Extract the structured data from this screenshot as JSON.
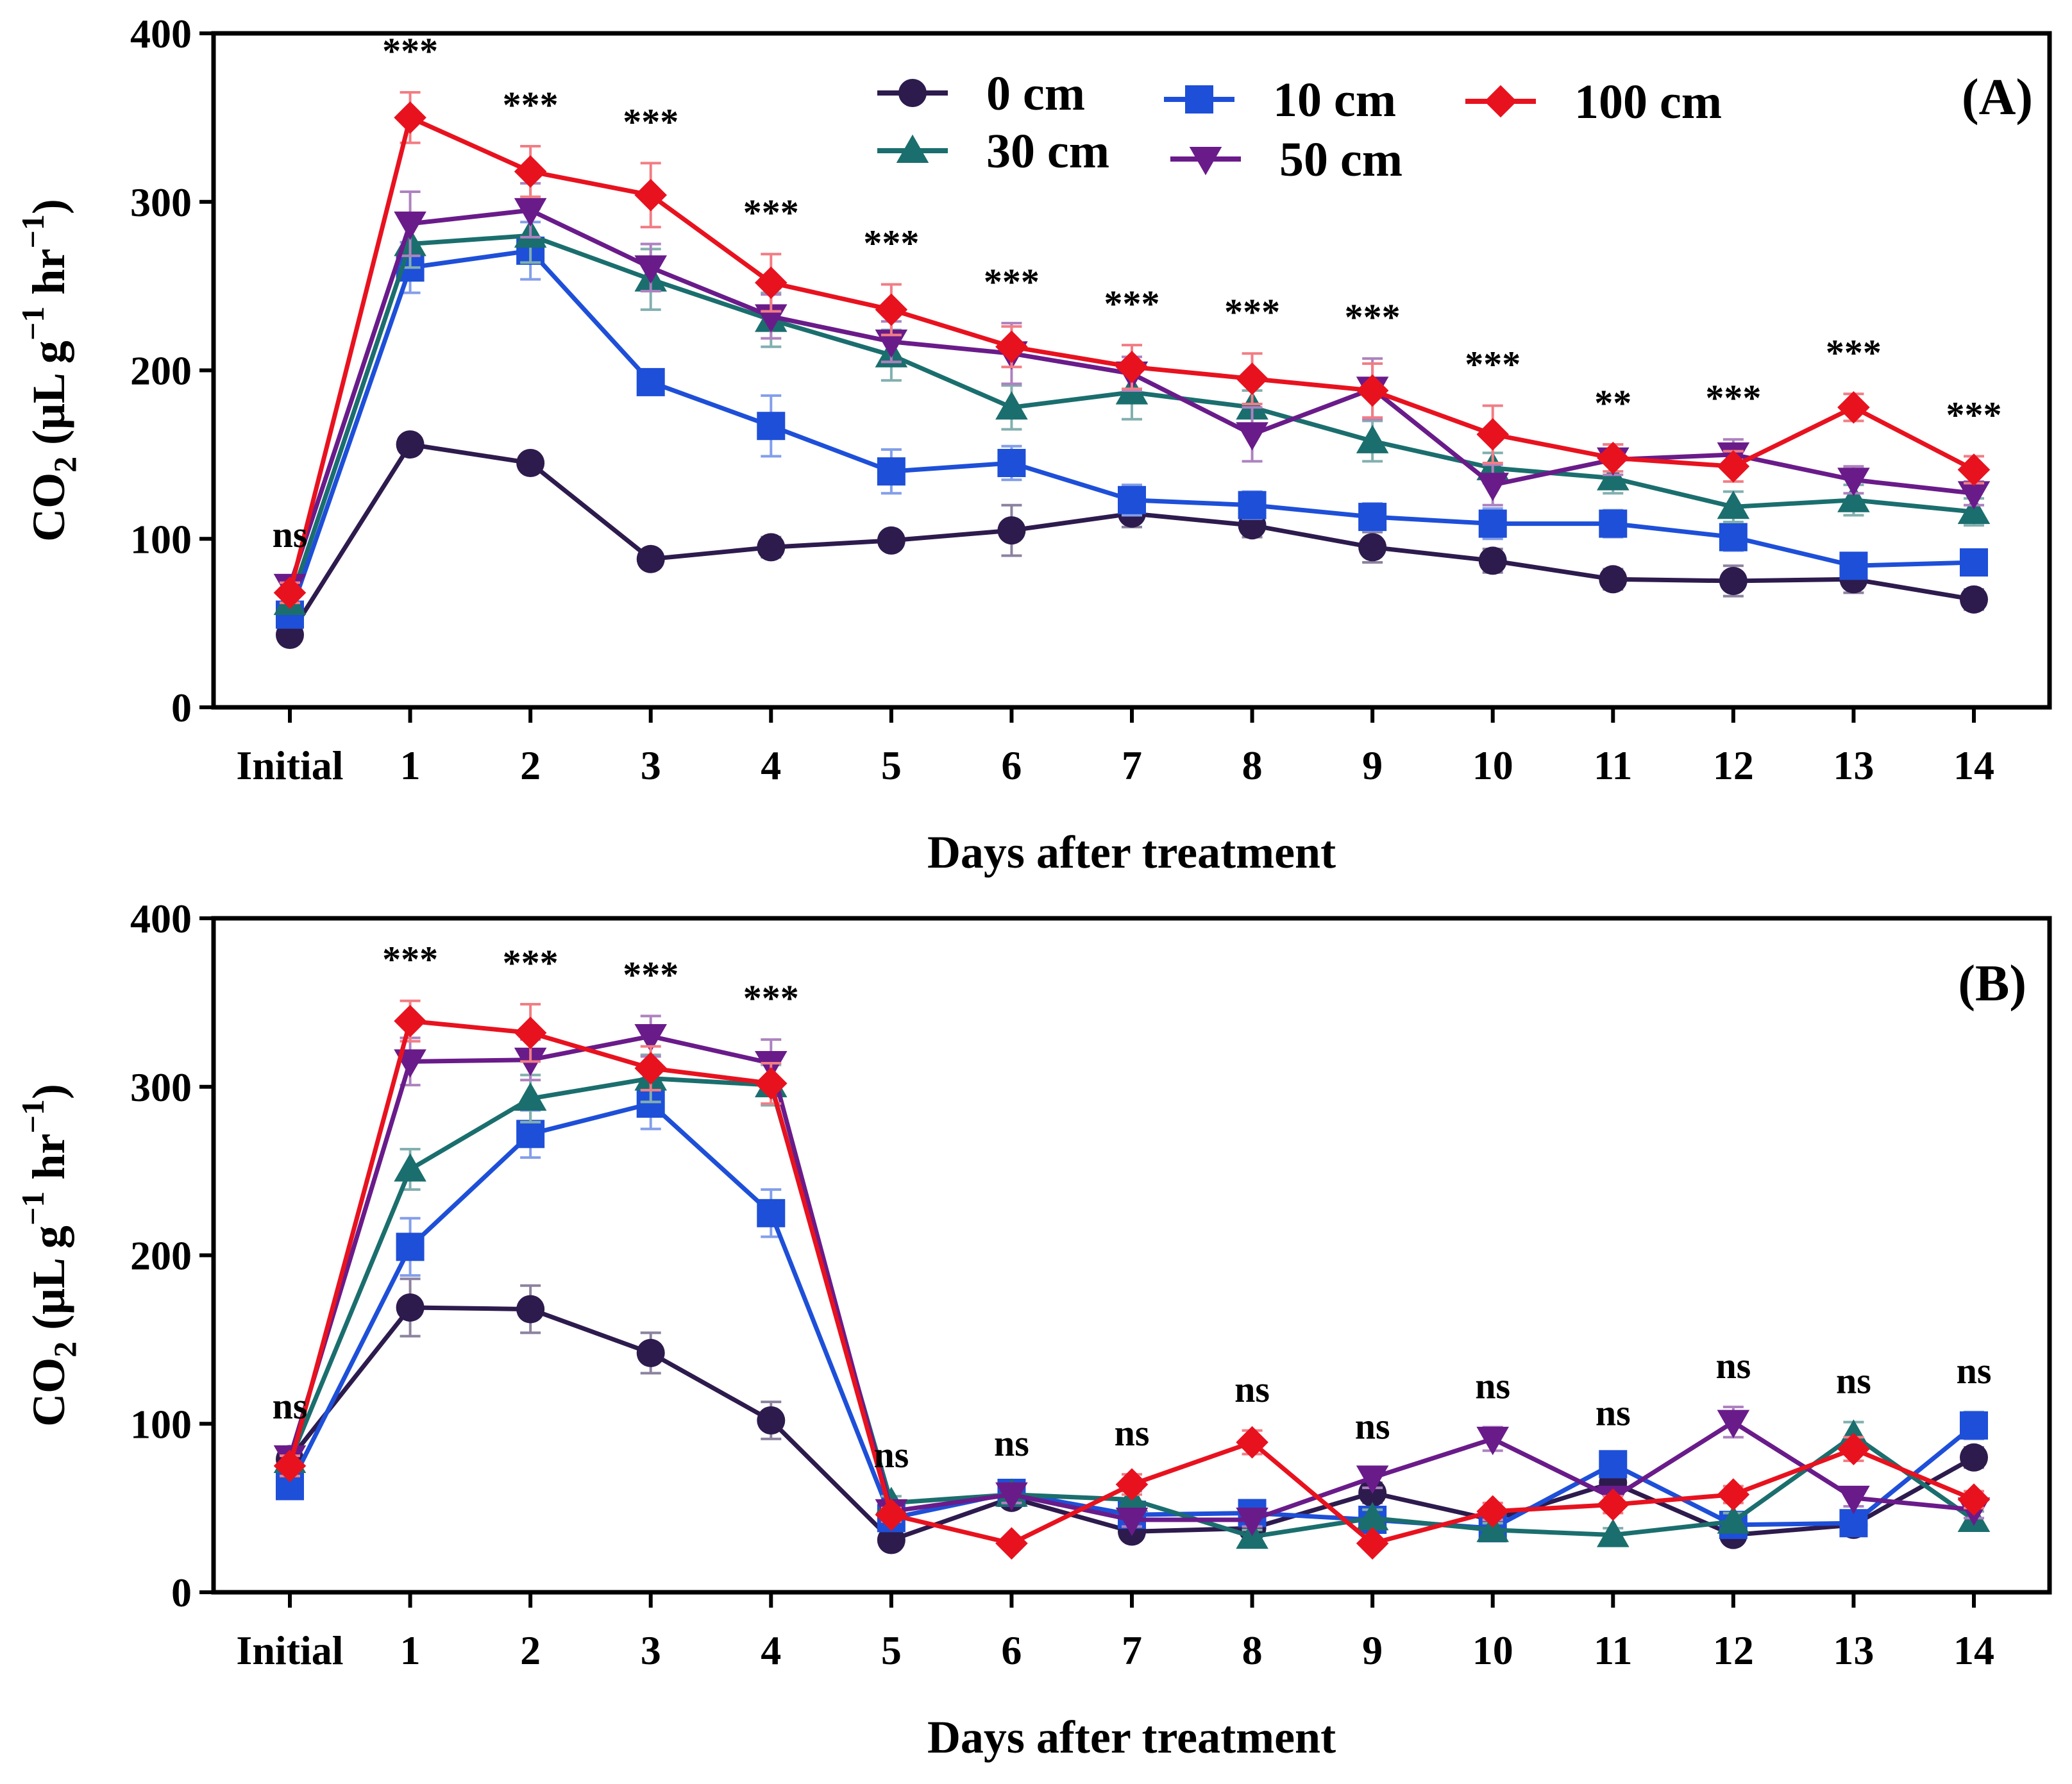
{
  "chart_data": [
    {
      "type": "line",
      "panel_label": "(A)",
      "title": "",
      "xlabel": "Days after treatment",
      "ylabel": "CO2 (μL g−1 hr−1)",
      "ylabel_parts": {
        "main": "CO",
        "sub": "2",
        "unit_open": " (μL g",
        "sup1": "−1",
        "unit_mid": " hr",
        "sup2": "−1",
        "unit_close": ")"
      },
      "ylim": [
        0,
        400
      ],
      "yticks": [
        0,
        100,
        200,
        300,
        400
      ],
      "ytick_labels": [
        "0",
        "100",
        "200",
        "300",
        "400"
      ],
      "categories": [
        "Initial",
        "1",
        "2",
        "3",
        "4",
        "5",
        "6",
        "7",
        "8",
        "9",
        "10",
        "11",
        "12",
        "13",
        "14"
      ],
      "significance": [
        "ns",
        "***",
        "***",
        "***",
        "***",
        "***",
        "***",
        "***",
        "***",
        "***",
        "***",
        "**",
        "***",
        "***",
        "***"
      ],
      "legend": true,
      "series": [
        {
          "name": "0 cm",
          "color": "#2d1b4e",
          "marker": "circle",
          "values": [
            43,
            156,
            145,
            88,
            95,
            99,
            105,
            115,
            108,
            95,
            87,
            76,
            75,
            76,
            64
          ],
          "errors": [
            4,
            5,
            4,
            5,
            6,
            5,
            15,
            8,
            7,
            9,
            7,
            6,
            9,
            8,
            6
          ]
        },
        {
          "name": "10 cm",
          "color": "#1e4fd8",
          "marker": "square",
          "values": [
            55,
            261,
            271,
            193,
            167,
            140,
            145,
            123,
            120,
            113,
            109,
            109,
            101,
            84,
            86
          ],
          "errors": [
            5,
            15,
            17,
            6,
            18,
            13,
            10,
            9,
            8,
            8,
            9,
            8,
            8,
            6,
            6
          ]
        },
        {
          "name": "30 cm",
          "color": "#1b6e6e",
          "marker": "triangle-up",
          "values": [
            62,
            275,
            280,
            254,
            230,
            209,
            178,
            187,
            178,
            158,
            142,
            136,
            119,
            123,
            116
          ],
          "errors": [
            6,
            14,
            16,
            18,
            16,
            15,
            13,
            16,
            10,
            12,
            9,
            9,
            9,
            9,
            8
          ]
        },
        {
          "name": "50 cm",
          "color": "#6a1b8a",
          "marker": "triangle-down",
          "values": [
            72,
            287,
            295,
            261,
            232,
            217,
            210,
            198,
            162,
            189,
            132,
            147,
            150,
            135,
            127
          ],
          "errors": [
            6,
            19,
            16,
            14,
            13,
            12,
            18,
            10,
            16,
            18,
            12,
            9,
            9,
            8,
            7
          ]
        },
        {
          "name": "100 cm",
          "color": "#e8121f",
          "marker": "diamond",
          "values": [
            68,
            350,
            318,
            304,
            252,
            236,
            214,
            202,
            195,
            188,
            162,
            148,
            143,
            178,
            141
          ],
          "errors": [
            6,
            15,
            15,
            19,
            17,
            15,
            12,
            13,
            15,
            16,
            17,
            8,
            9,
            8,
            8
          ]
        }
      ]
    },
    {
      "type": "line",
      "panel_label": "(B)",
      "title": "",
      "xlabel": "Days after treatment",
      "ylabel": "CO2 (μL g−1 hr−1)",
      "ylabel_parts": {
        "main": "CO",
        "sub": "2",
        "unit_open": " (μL g",
        "sup1": "−1",
        "unit_mid": " hr",
        "sup2": "−1",
        "unit_close": ")"
      },
      "ylim": [
        0,
        400
      ],
      "yticks": [
        0,
        100,
        200,
        300,
        400
      ],
      "ytick_labels": [
        "0",
        "100",
        "200",
        "300",
        "400"
      ],
      "categories": [
        "Initial",
        "1",
        "2",
        "3",
        "4",
        "5",
        "6",
        "7",
        "8",
        "9",
        "10",
        "11",
        "12",
        "13",
        "14"
      ],
      "significance": [
        "ns",
        "***",
        "***",
        "***",
        "***",
        "ns",
        "ns",
        "ns",
        "ns",
        "ns",
        "ns",
        "ns",
        "ns",
        "ns",
        "ns"
      ],
      "legend": false,
      "series": [
        {
          "name": "0 cm",
          "color": "#2d1b4e",
          "marker": "circle",
          "values": [
            79,
            169,
            168,
            142,
            102,
            31,
            56,
            36,
            38,
            59,
            43,
            65,
            34,
            40,
            80
          ],
          "errors": [
            6,
            17,
            14,
            12,
            11,
            4,
            5,
            4,
            5,
            6,
            6,
            7,
            4,
            5,
            6
          ]
        },
        {
          "name": "10 cm",
          "color": "#1e4fd8",
          "marker": "square",
          "values": [
            63,
            205,
            272,
            290,
            225,
            44,
            59,
            46,
            47,
            43,
            38,
            76,
            40,
            41,
            99
          ],
          "errors": [
            5,
            17,
            14,
            15,
            14,
            4,
            5,
            4,
            5,
            4,
            4,
            6,
            4,
            5,
            8
          ]
        },
        {
          "name": "30 cm",
          "color": "#1b6e6e",
          "marker": "triangle-up",
          "values": [
            78,
            251,
            293,
            305,
            301,
            53,
            58,
            55,
            33,
            44,
            37,
            34,
            42,
            93,
            43
          ],
          "errors": [
            6,
            12,
            14,
            14,
            12,
            4,
            5,
            5,
            4,
            5,
            4,
            4,
            5,
            8,
            5
          ]
        },
        {
          "name": "50 cm",
          "color": "#6a1b8a",
          "marker": "triangle-down",
          "values": [
            80,
            315,
            316,
            330,
            314,
            48,
            58,
            43,
            43,
            68,
            91,
            56,
            101,
            56,
            49
          ],
          "errors": [
            6,
            14,
            12,
            12,
            14,
            4,
            5,
            4,
            4,
            6,
            7,
            5,
            9,
            5,
            5
          ]
        },
        {
          "name": "100 cm",
          "color": "#e8121f",
          "marker": "diamond",
          "values": [
            75,
            339,
            332,
            311,
            302,
            46,
            29,
            64,
            89,
            29,
            48,
            52,
            58,
            85,
            55
          ],
          "errors": [
            6,
            12,
            17,
            13,
            12,
            4,
            3,
            6,
            7,
            3,
            5,
            5,
            5,
            7,
            5
          ]
        }
      ]
    }
  ]
}
